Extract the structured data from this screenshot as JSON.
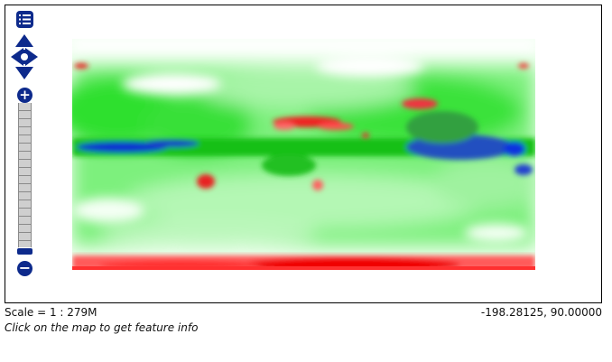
{
  "map": {
    "status": {
      "scale": "Scale = 1 : 279M",
      "coordinates": "-198.28125, 90.00000"
    },
    "hint": "Click on the map to get feature info",
    "controls": {
      "layer_switcher_icon": "layer-list-icon",
      "pan_icon": "pan-arrows-icon",
      "zoom_in_label": "+",
      "zoom_out_label": "−"
    },
    "colors": {
      "positive": "#00d000",
      "negative": "#e00000",
      "strong": "#0020d0",
      "neutral": "#ffffff",
      "control": "#0d2a8c"
    }
  }
}
